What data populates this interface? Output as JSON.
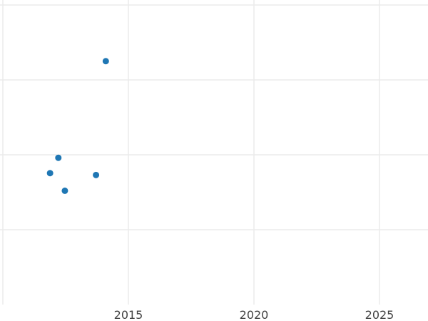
{
  "chart_data": {
    "type": "scatter",
    "title": "",
    "xlabel": "",
    "ylabel": "",
    "xlim": [
      2010,
      2026.8
    ],
    "ylim": [
      0,
      4.07
    ],
    "x_ticks": [
      2015,
      2020,
      2025
    ],
    "x_tick_labels": [
      "2015",
      "2020",
      "2025"
    ],
    "y_gridlines": [
      1,
      2,
      3,
      4
    ],
    "y_tick_labels_visible": false,
    "grid": true,
    "marker_color": "#1f77b4",
    "points": [
      {
        "x": 2014.1,
        "y": 3.25
      },
      {
        "x": 2012.21,
        "y": 1.96
      },
      {
        "x": 2011.88,
        "y": 1.755
      },
      {
        "x": 2013.71,
        "y": 1.73
      },
      {
        "x": 2012.47,
        "y": 1.52
      }
    ]
  }
}
